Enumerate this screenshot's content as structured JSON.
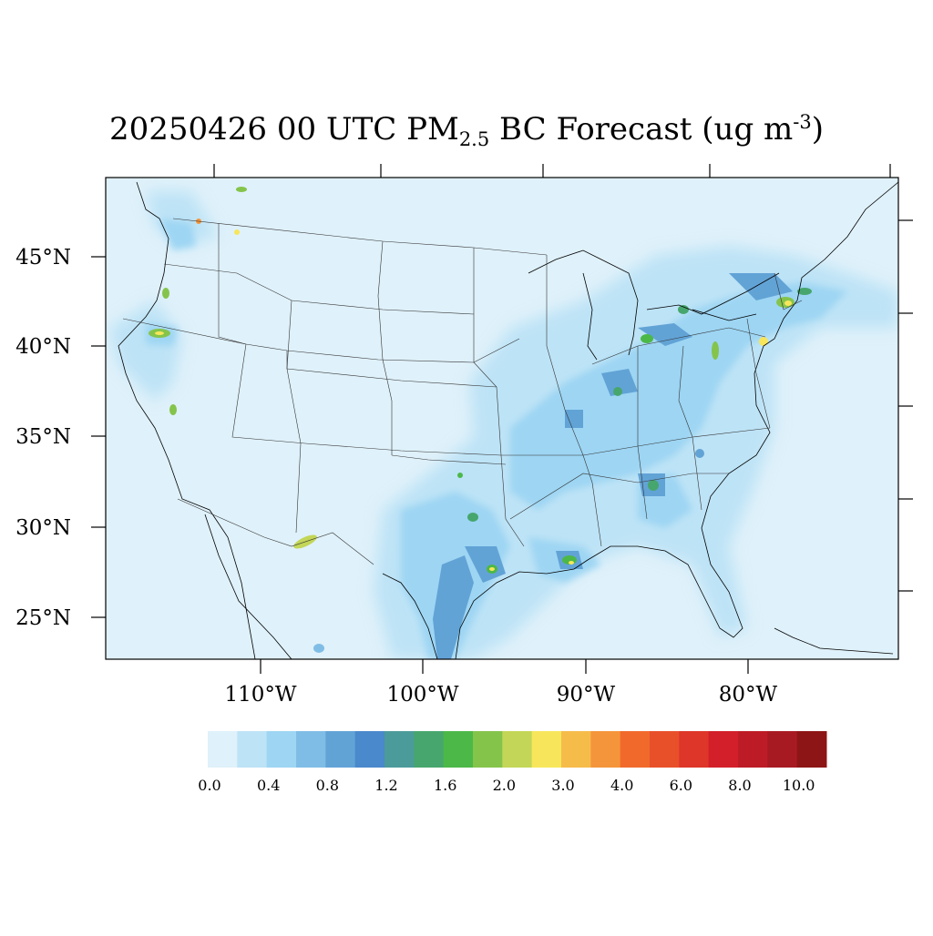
{
  "title": {
    "date": "20250426",
    "hour": "00 UTC",
    "species_main": "PM",
    "species_sub": "2.5",
    "species_rest": "BC Forecast",
    "units_pre": "(ug m",
    "units_sup": "-3",
    "units_post": ")"
  },
  "map": {
    "projection": "lambert-conformal",
    "background_color": "#dff1fa",
    "lat_labels": [
      "45°N",
      "40°N",
      "35°N",
      "30°N",
      "25°N"
    ],
    "lon_labels": [
      "110°W",
      "100°W",
      "90°W",
      "80°W"
    ]
  },
  "colorbar": {
    "colors": [
      "#dff1fa",
      "#bde3f6",
      "#9dd5f3",
      "#80bde6",
      "#62a3d6",
      "#4a89cb",
      "#4b9b9a",
      "#47a66d",
      "#4cb848",
      "#85c44b",
      "#c3d657",
      "#f7e65b",
      "#f6bc4a",
      "#f5953b",
      "#f16a2b",
      "#e8502a",
      "#de3628",
      "#d21f2a",
      "#bd1c26",
      "#a81a22",
      "#8e1515"
    ],
    "labels": [
      "0.0",
      "0.4",
      "0.8",
      "1.2",
      "1.6",
      "2.0",
      "3.0",
      "4.0",
      "6.0",
      "8.0",
      "10.0"
    ]
  }
}
